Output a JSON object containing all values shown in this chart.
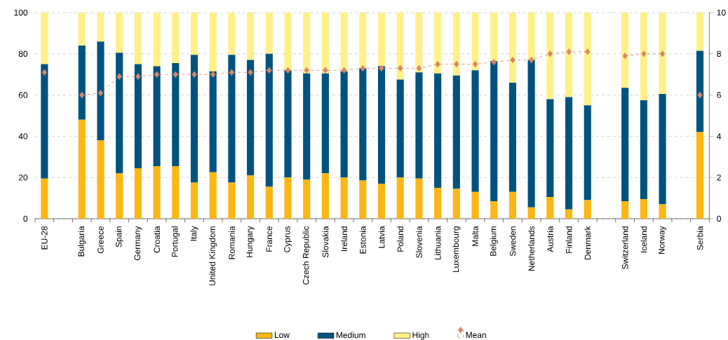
{
  "chart_data": {
    "type": "bar",
    "stacked": true,
    "categories": [
      "EU-28",
      null,
      "Bulgaria",
      "Greece",
      "Spain",
      "Germany",
      "Croatia",
      "Portugal",
      "Italy",
      "United Kingdom",
      "Romania",
      "Hungary",
      "France",
      "Cyprus",
      "Czech Republic",
      "Slovakia",
      "Ireland",
      "Estonia",
      "Latvia",
      "Poland",
      "Slovenia",
      "Lithuania",
      "Luxembourg",
      "Malta",
      "Belgium",
      "Sweden",
      "Netherlands",
      "Austria",
      "Finland",
      "Denmark",
      null,
      "Switzerland",
      "Iceland",
      "Norway",
      null,
      "Serbia"
    ],
    "series": [
      {
        "name": "Low",
        "color": "#fbb714",
        "values": [
          19.5,
          null,
          48,
          38,
          22,
          24.5,
          25.5,
          25.5,
          17.5,
          22.5,
          17.5,
          21,
          15.5,
          20,
          19,
          22,
          20,
          18.5,
          17,
          20,
          19.5,
          15,
          14.5,
          13,
          8.5,
          13,
          5.5,
          10.5,
          4.5,
          9,
          null,
          8.5,
          9.5,
          7,
          null,
          42
        ]
      },
      {
        "name": "Medium",
        "color": "#00537e",
        "values": [
          55.5,
          null,
          36,
          48,
          58.5,
          50.5,
          48.5,
          50,
          62,
          49,
          62,
          56,
          64.5,
          52,
          51.5,
          48.5,
          51.5,
          54.5,
          57,
          47.5,
          51.5,
          55.5,
          55,
          59,
          68,
          53,
          71.5,
          47.5,
          54.5,
          46,
          null,
          55,
          48,
          53.5,
          null,
          39.5
        ]
      },
      {
        "name": "High",
        "color": "#fff08a",
        "values": [
          25,
          null,
          16,
          14,
          19.5,
          25,
          26,
          24.5,
          20.5,
          28.5,
          20.5,
          23,
          20,
          28,
          29.5,
          29.5,
          28.5,
          27,
          26,
          32.5,
          29,
          29.5,
          30.5,
          28,
          23.5,
          34,
          23,
          42,
          41,
          45,
          null,
          36.5,
          42.5,
          39.5,
          null,
          18.5
        ]
      },
      {
        "name": "Mean",
        "type": "line",
        "axis": "y2",
        "color": "#d4876a",
        "marker": "diamond",
        "line_style": "dashed",
        "values": [
          7.1,
          null,
          6.0,
          6.1,
          6.9,
          6.9,
          7.0,
          7.0,
          7.0,
          7.0,
          7.1,
          7.1,
          7.2,
          7.2,
          7.2,
          7.2,
          7.2,
          7.3,
          7.3,
          7.3,
          7.3,
          7.5,
          7.5,
          7.5,
          7.6,
          7.7,
          7.7,
          8.0,
          8.1,
          8.1,
          null,
          7.9,
          8.0,
          8.0,
          null,
          6.0
        ]
      }
    ],
    "ylim": [
      0,
      100
    ],
    "yticks": [
      0,
      20,
      40,
      60,
      80,
      100
    ],
    "y2lim": [
      0,
      10
    ],
    "y2ticks": [
      0,
      2,
      4,
      6,
      8,
      10
    ],
    "grid": "y",
    "legend": "bottom"
  }
}
